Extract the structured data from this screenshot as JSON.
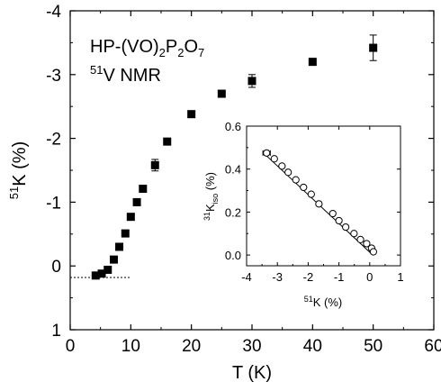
{
  "chart_data": [
    {
      "type": "scatter",
      "annotations": {
        "compound_main": "HP-(VO)",
        "compound_sub1": "2",
        "compound_mid": "P",
        "compound_sub2": "2",
        "compound_o": "O",
        "compound_sub3": "7",
        "nucleus_sup": "51",
        "nucleus_text": "V NMR"
      },
      "xlabel": "T (K)",
      "ylabel_sup": "51",
      "ylabel_text": "K (%)",
      "xlim": [
        0,
        60
      ],
      "ylim": [
        1,
        -4
      ],
      "y_inverted": true,
      "xticks": [
        0,
        10,
        20,
        30,
        40,
        50,
        60
      ],
      "yticks": [
        1,
        0,
        -1,
        -2,
        -3,
        -4
      ],
      "ytick_labels": [
        "1",
        "0",
        "-1",
        "-2",
        "-3",
        "-4"
      ],
      "reference_line": {
        "y": 0.18,
        "x_range": [
          0,
          10
        ],
        "style": "dotted"
      },
      "series": [
        {
          "marker": "filled-square",
          "x": [
            4.2,
            5.2,
            6.2,
            7.2,
            8.1,
            9.1,
            10,
            11,
            12,
            14,
            16,
            20,
            25,
            30,
            40,
            50
          ],
          "y": [
            0.15,
            0.12,
            0.06,
            -0.1,
            -0.3,
            -0.51,
            -0.77,
            -1.0,
            -1.21,
            -1.58,
            -1.95,
            -2.38,
            -2.7,
            -2.9,
            -3.2,
            -3.42
          ],
          "yerr": [
            0,
            0,
            0,
            0,
            0,
            0,
            0,
            0,
            0,
            0.09,
            0,
            0,
            0,
            0.1,
            0,
            0.2
          ]
        }
      ]
    },
    {
      "type": "scatter",
      "inset": true,
      "xlabel_sup": "51",
      "xlabel_text": "K (%)",
      "ylabel_sup": "31",
      "ylabel_main": "K",
      "ylabel_sub": "iso",
      "ylabel_tail": " (%)",
      "xlim": [
        -4,
        1
      ],
      "ylim": [
        -0.05,
        0.6
      ],
      "xticks": [
        -4,
        -3,
        -2,
        -1,
        0,
        1
      ],
      "yticks": [
        0.0,
        0.2,
        0.4,
        0.6
      ],
      "ytick_labels": [
        "0.0",
        "0.2",
        "0.4",
        "0.6"
      ],
      "fit_line": {
        "x": [
          -3.45,
          0.1
        ],
        "y": [
          0.475,
          0.0
        ]
      },
      "series": [
        {
          "marker": "open-circle",
          "x": [
            -3.35,
            -3.1,
            -2.85,
            -2.65,
            -2.4,
            -2.15,
            -1.9,
            -1.65,
            -1.2,
            -1.0,
            -0.78,
            -0.51,
            -0.3,
            -0.1,
            0.06,
            0.12
          ],
          "y": [
            0.475,
            0.448,
            0.414,
            0.385,
            0.35,
            0.315,
            0.283,
            0.238,
            0.193,
            0.16,
            0.13,
            0.1,
            0.072,
            0.053,
            0.032,
            0.015
          ],
          "xerr": [
            0.12,
            0,
            0,
            0,
            0,
            0,
            0,
            0,
            0,
            0,
            0,
            0,
            0,
            0,
            0,
            0
          ]
        }
      ]
    }
  ]
}
